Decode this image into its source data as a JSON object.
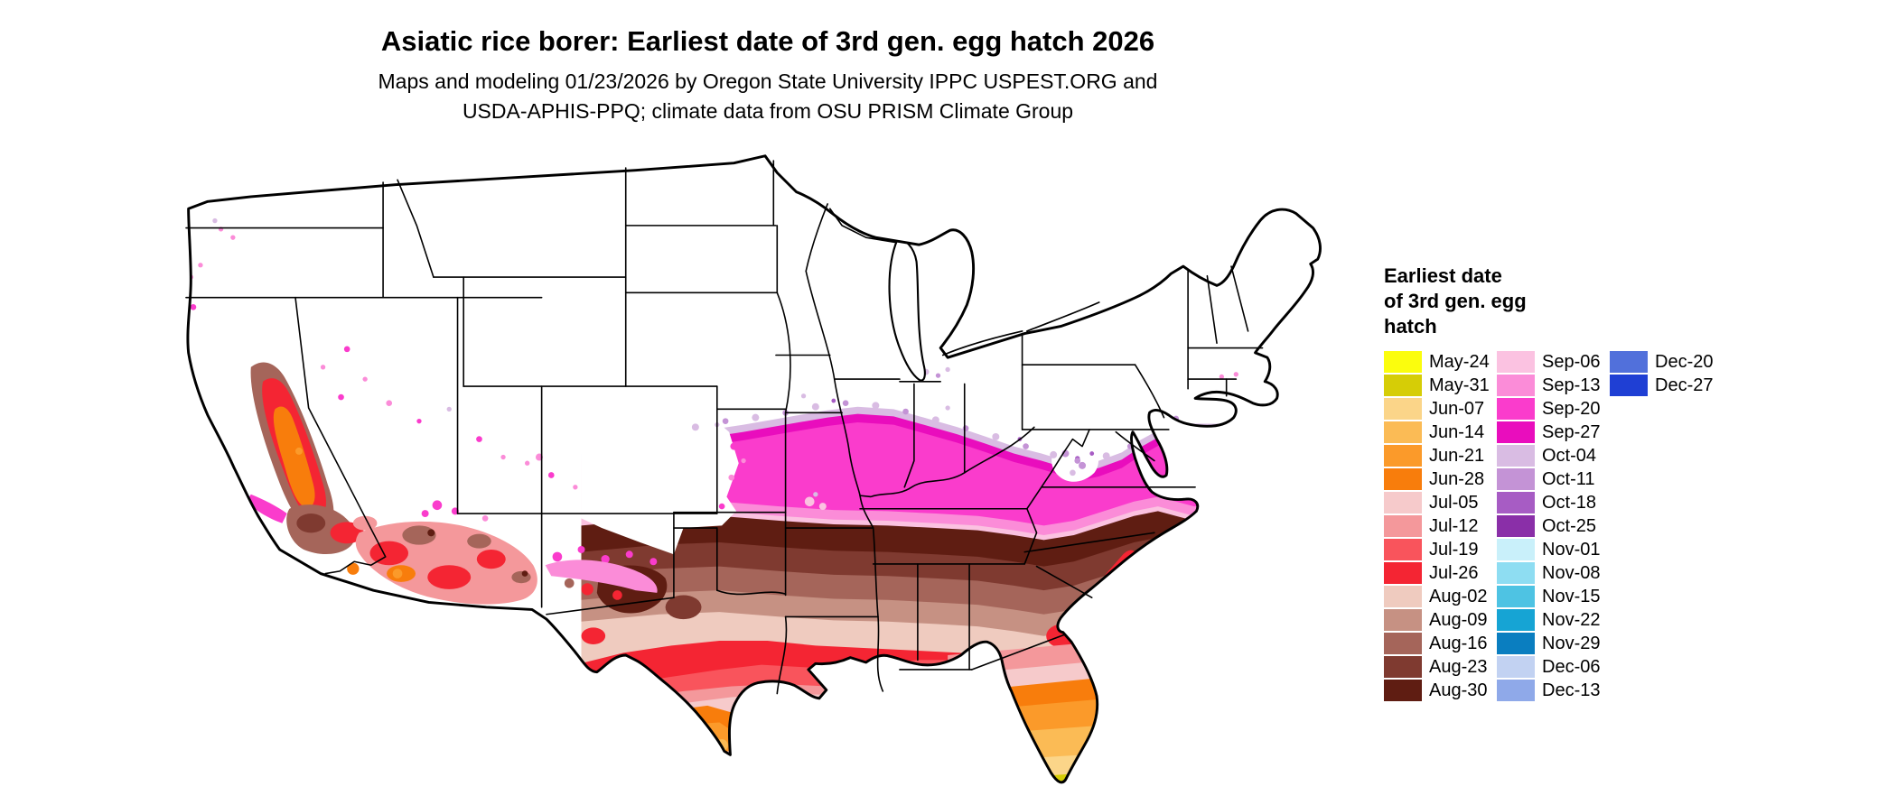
{
  "header": {
    "title": "Asiatic rice borer: Earliest date of 3rd gen. egg hatch 2026",
    "subtitle_line1": "Maps and modeling 01/23/2026 by Oregon State University IPPC USPEST.ORG and",
    "subtitle_line2": "USDA-APHIS-PPQ; climate data from OSU PRISM Climate Group"
  },
  "legend": {
    "title_lines": [
      "Earliest date",
      "of 3rd gen. egg",
      "hatch"
    ],
    "entries": [
      {
        "label": "May-24",
        "color": "#FBFD0D"
      },
      {
        "label": "May-31",
        "color": "#D6CD06"
      },
      {
        "label": "Jun-07",
        "color": "#FBD589"
      },
      {
        "label": "Jun-14",
        "color": "#FBBB55"
      },
      {
        "label": "Jun-21",
        "color": "#FB9A2A"
      },
      {
        "label": "Jun-28",
        "color": "#F87D0C"
      },
      {
        "label": "Jul-05",
        "color": "#F6CACB"
      },
      {
        "label": "Jul-12",
        "color": "#F4989B"
      },
      {
        "label": "Jul-19",
        "color": "#F9545C"
      },
      {
        "label": "Jul-26",
        "color": "#F42533"
      },
      {
        "label": "Aug-02",
        "color": "#EFCBBF"
      },
      {
        "label": "Aug-09",
        "color": "#C69183"
      },
      {
        "label": "Aug-16",
        "color": "#A5655A"
      },
      {
        "label": "Aug-23",
        "color": "#7F3A30"
      },
      {
        "label": "Aug-30",
        "color": "#5F1D12"
      },
      {
        "label": "Sep-06",
        "color": "#FBC2E1"
      },
      {
        "label": "Sep-13",
        "color": "#FB8CD8"
      },
      {
        "label": "Sep-20",
        "color": "#FA3CCC"
      },
      {
        "label": "Sep-27",
        "color": "#E90DBD"
      },
      {
        "label": "Oct-04",
        "color": "#D9BCE3"
      },
      {
        "label": "Oct-11",
        "color": "#C493D6"
      },
      {
        "label": "Oct-18",
        "color": "#A75CC4"
      },
      {
        "label": "Oct-25",
        "color": "#8A2FA8"
      },
      {
        "label": "Nov-01",
        "color": "#C9F0FA"
      },
      {
        "label": "Nov-08",
        "color": "#8EDDF2"
      },
      {
        "label": "Nov-15",
        "color": "#4EC3E3"
      },
      {
        "label": "Nov-22",
        "color": "#16A4D4"
      },
      {
        "label": "Nov-29",
        "color": "#0A7EC0"
      },
      {
        "label": "Dec-06",
        "color": "#C2D2F2"
      },
      {
        "label": "Dec-13",
        "color": "#8FA9E9"
      },
      {
        "label": "Dec-20",
        "color": "#5170DB"
      },
      {
        "label": "Dec-27",
        "color": "#1F3FD4"
      }
    ]
  }
}
